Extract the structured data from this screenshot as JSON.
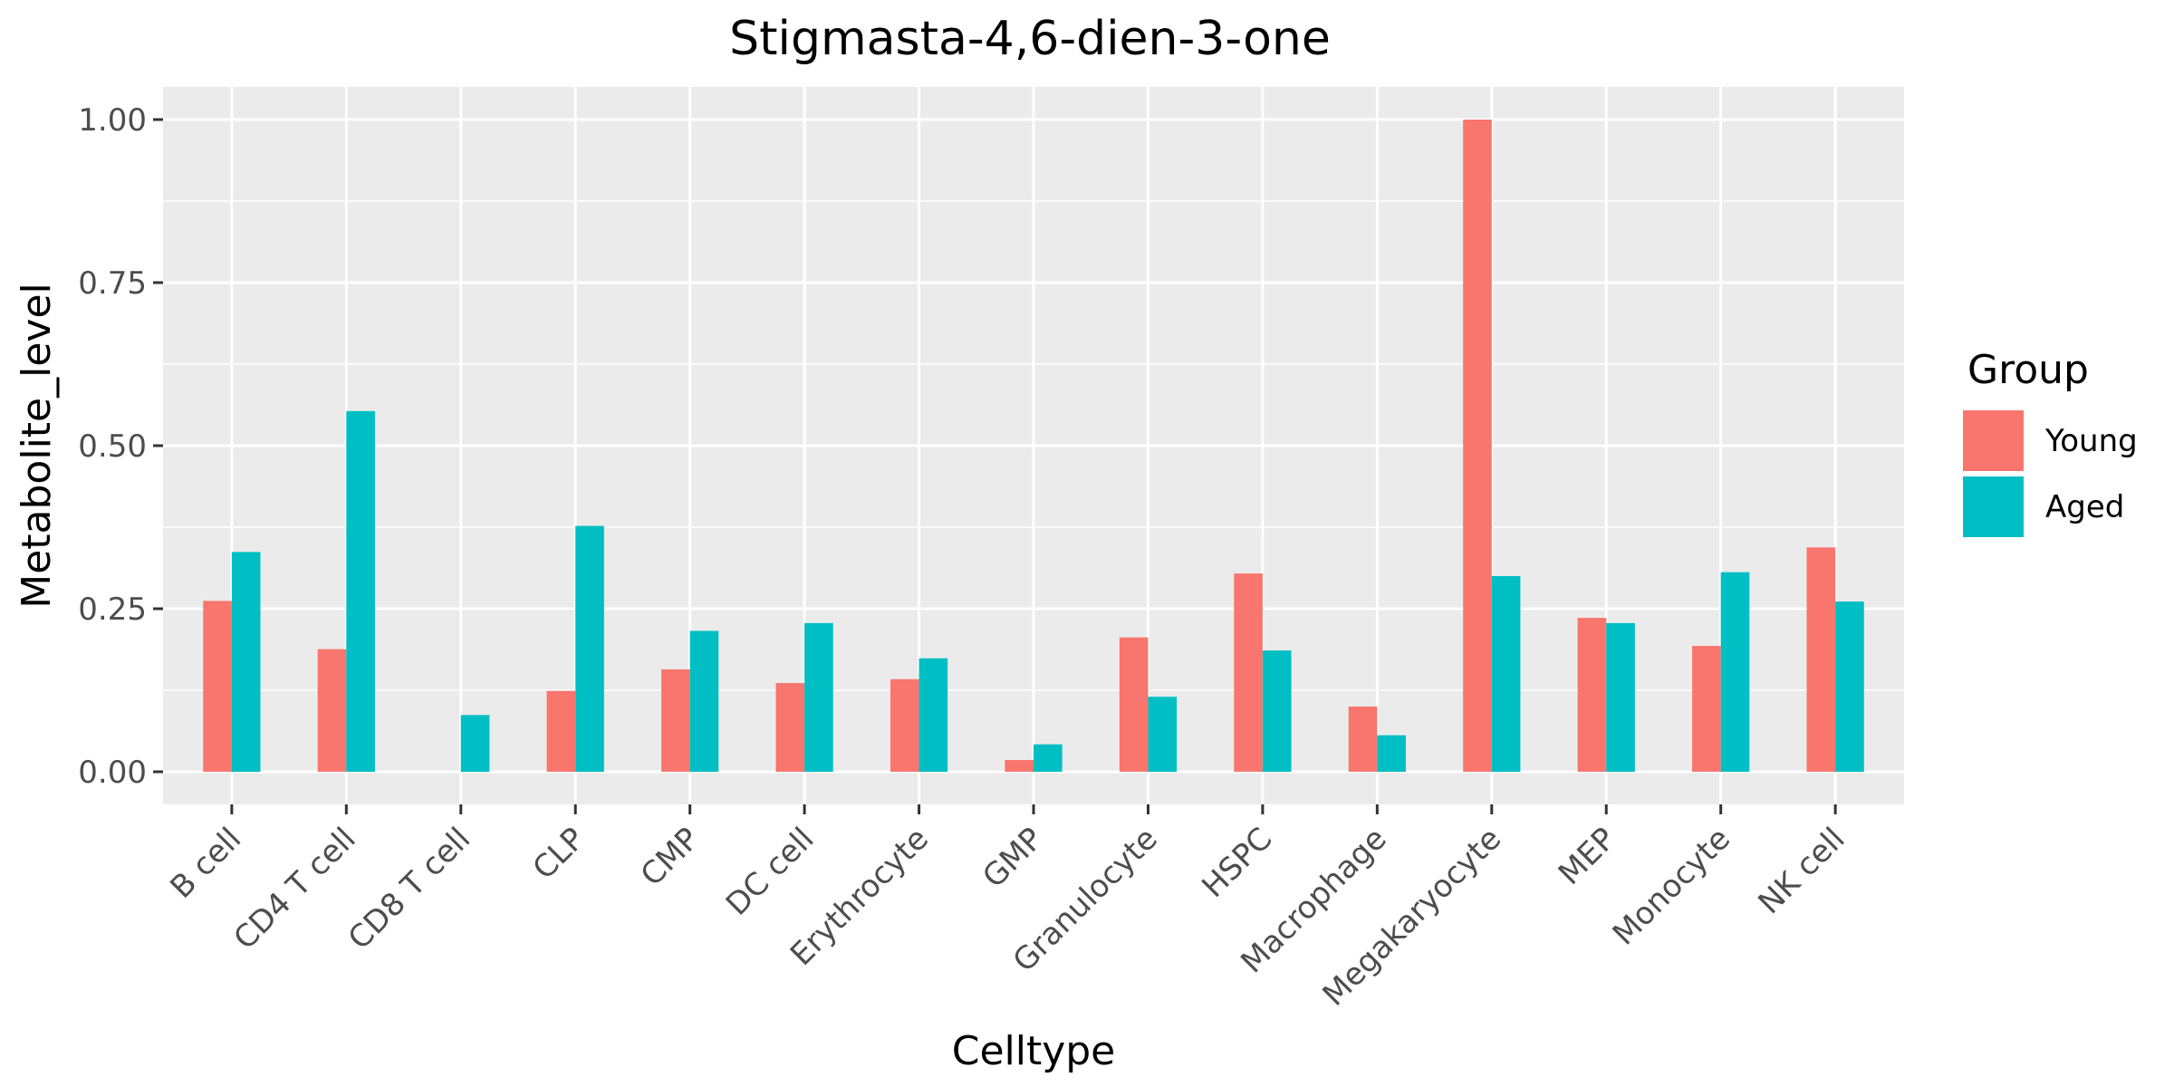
{
  "chart_data": {
    "type": "bar",
    "title": "Stigmasta-4,6-dien-3-one",
    "xlabel": "Celltype",
    "ylabel": "Metabolite_level",
    "ylim": [
      -0.05,
      1.05
    ],
    "y_ticks": [
      "0.00",
      "0.25",
      "0.50",
      "0.75",
      "1.00"
    ],
    "grid": true,
    "legend": {
      "title": "Group",
      "position": "right"
    },
    "categories": [
      "B cell",
      "CD4 T cell",
      "CD8 T cell",
      "CLP",
      "CMP",
      "DC cell",
      "Erythrocyte",
      "GMP",
      "Granulocyte",
      "HSPC",
      "Macrophage",
      "Megakaryocyte",
      "MEP",
      "Monocyte",
      "NK cell"
    ],
    "series": [
      {
        "name": "Young",
        "color": "#F8766D",
        "values": [
          0.262,
          0.188,
          0.0,
          0.124,
          0.157,
          0.136,
          0.142,
          0.018,
          0.206,
          0.304,
          0.1,
          1.0,
          0.236,
          0.193,
          0.344
        ]
      },
      {
        "name": "Aged",
        "color": "#00BFC4",
        "values": [
          0.337,
          0.553,
          0.087,
          0.377,
          0.216,
          0.228,
          0.174,
          0.042,
          0.115,
          0.186,
          0.056,
          0.3,
          0.228,
          0.306,
          0.261
        ]
      }
    ]
  }
}
